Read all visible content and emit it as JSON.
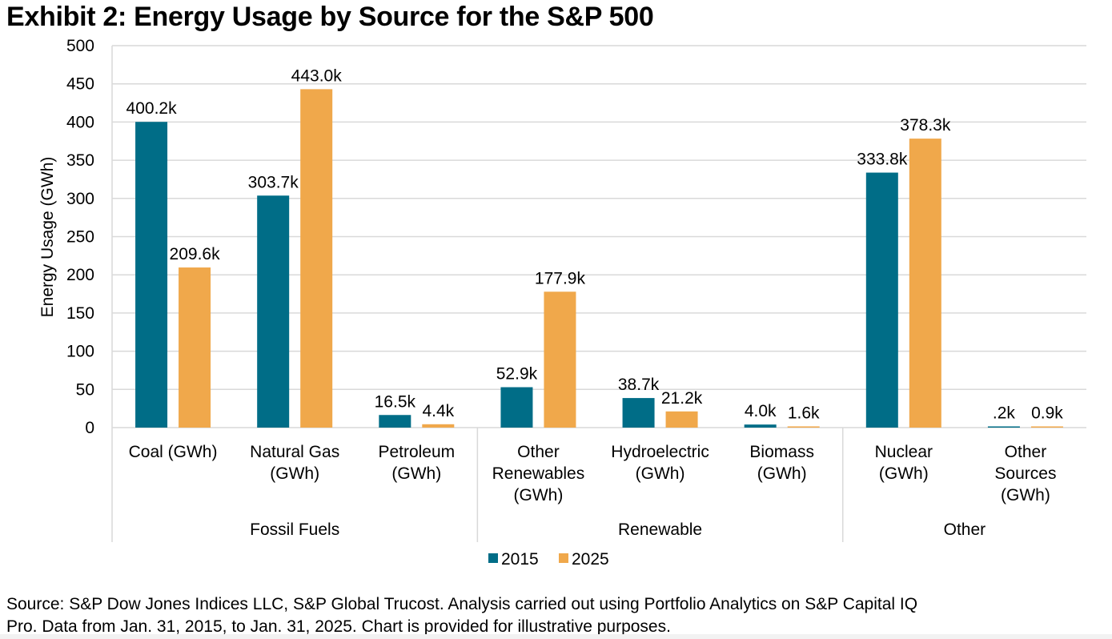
{
  "title": "Exhibit 2: Energy Usage by Source for the S&P 500",
  "footer": {
    "source_line1": "Source: S&P Dow Jones Indices LLC, S&P Global Trucost. Analysis carried out using Portfolio Analytics on S&P Capital IQ",
    "source_line2": "Pro. Data from Jan. 31, 2015, to Jan. 31, 2025. Chart is provided for illustrative purposes."
  },
  "colors": {
    "series_2015": "#006d87",
    "series_2025": "#f0a84b",
    "grid": "#d9d9d9"
  },
  "chart_data": {
    "type": "bar",
    "title": "Exhibit 2: Energy Usage by Source for the S&P 500",
    "xlabel": "",
    "ylabel": "Energy Usage (GWh)",
    "ylim": [
      0,
      500
    ],
    "yticks": [
      0,
      50,
      100,
      150,
      200,
      250,
      300,
      350,
      400,
      450,
      500
    ],
    "grid": true,
    "legend_position": "bottom-center",
    "categories": [
      [
        "Coal (GWh)"
      ],
      [
        "Natural Gas",
        "(GWh)"
      ],
      [
        "Petroleum",
        "(GWh)"
      ],
      [
        "Other",
        "Renewables",
        "(GWh)"
      ],
      [
        "Hydroelectric",
        "(GWh)"
      ],
      [
        "Biomass",
        "(GWh)"
      ],
      [
        "Nuclear",
        "(GWh)"
      ],
      [
        "Other",
        "Sources",
        "(GWh)"
      ]
    ],
    "groups": [
      {
        "label": "Fossil Fuels",
        "start": 0,
        "end": 2
      },
      {
        "label": "Renewable",
        "start": 3,
        "end": 5
      },
      {
        "label": "Other",
        "start": 6,
        "end": 7
      }
    ],
    "series": [
      {
        "name": "2015",
        "color": "#006d87",
        "values": [
          400.2,
          303.7,
          16.5,
          52.9,
          38.7,
          4.0,
          333.8,
          0.2
        ],
        "labels": [
          "400.2k",
          "303.7k",
          "16.5k",
          "52.9k",
          "38.7k",
          "4.0k",
          "333.8k",
          ".2k"
        ]
      },
      {
        "name": "2025",
        "color": "#f0a84b",
        "values": [
          209.6,
          443.0,
          4.4,
          177.9,
          21.2,
          1.6,
          378.3,
          0.9
        ],
        "labels": [
          "209.6k",
          "443.0k",
          "4.4k",
          "177.9k",
          "21.2k",
          "1.6k",
          "378.3k",
          "0.9k"
        ]
      }
    ]
  }
}
